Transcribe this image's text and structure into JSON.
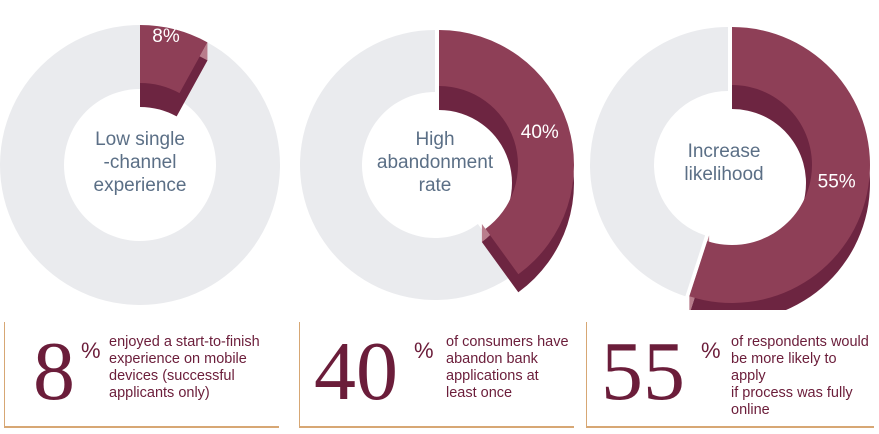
{
  "chart_data": [
    {
      "type": "pie",
      "center_label": [
        "Low single",
        "-channel",
        "experience"
      ],
      "values": [
        8,
        92
      ],
      "categories": [
        "",
        ""
      ],
      "data_label": "8%",
      "colors": {
        "slice": "#8e3f57",
        "slice_dark": "#6d2541",
        "slice_light": "#b97d8c",
        "rest": "#eaebee"
      }
    },
    {
      "type": "pie",
      "center_label": [
        "High",
        "abandonment",
        "rate"
      ],
      "values": [
        40,
        60
      ],
      "categories": [
        "",
        ""
      ],
      "data_label": "40%",
      "colors": {
        "slice": "#8e3f57",
        "slice_dark": "#6d2541",
        "slice_light": "#b97d8c",
        "rest": "#eaebee"
      }
    },
    {
      "type": "pie",
      "center_label": [
        "Increase",
        "likelihood"
      ],
      "values": [
        55,
        45
      ],
      "categories": [
        "",
        ""
      ],
      "data_label": "55%",
      "colors": {
        "slice": "#8e3f57",
        "slice_dark": "#6d2541",
        "slice_light": "#b97d8c",
        "rest": "#eaebee"
      }
    }
  ],
  "stats": [
    {
      "number": "8",
      "unit": "%",
      "text": [
        "enjoyed a start-to-finish",
        "experience on mobile",
        "devices (successful",
        "applicants only)"
      ]
    },
    {
      "number": "40",
      "unit": "%",
      "text": [
        "of consumers have",
        "abandon bank",
        "applications at",
        "least once"
      ]
    },
    {
      "number": "55",
      "unit": "%",
      "text": [
        "of respondents would",
        "be more likely to apply",
        "if process was fully",
        "online"
      ]
    }
  ]
}
